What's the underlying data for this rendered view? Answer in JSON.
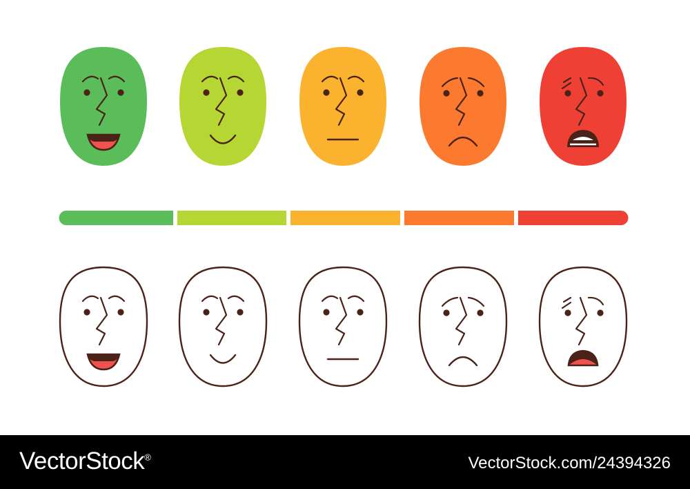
{
  "faces": [
    {
      "mood": "very-happy",
      "fill": "#5bbd5a"
    },
    {
      "mood": "happy",
      "fill": "#b5d633"
    },
    {
      "mood": "neutral",
      "fill": "#fbb22f"
    },
    {
      "mood": "sad",
      "fill": "#fb7a2f"
    },
    {
      "mood": "very-sad",
      "fill": "#ef4036"
    }
  ],
  "scale_segments": [
    "#5bbd5a",
    "#b5d633",
    "#fbb22f",
    "#fb7a2f",
    "#ef4036"
  ],
  "line_color": "#4a2217",
  "mouth_fill": "#f0524f",
  "footer": {
    "brand": "VectorStock",
    "brand_mark": "®",
    "image_id": "VectorStock.com/24394326"
  }
}
